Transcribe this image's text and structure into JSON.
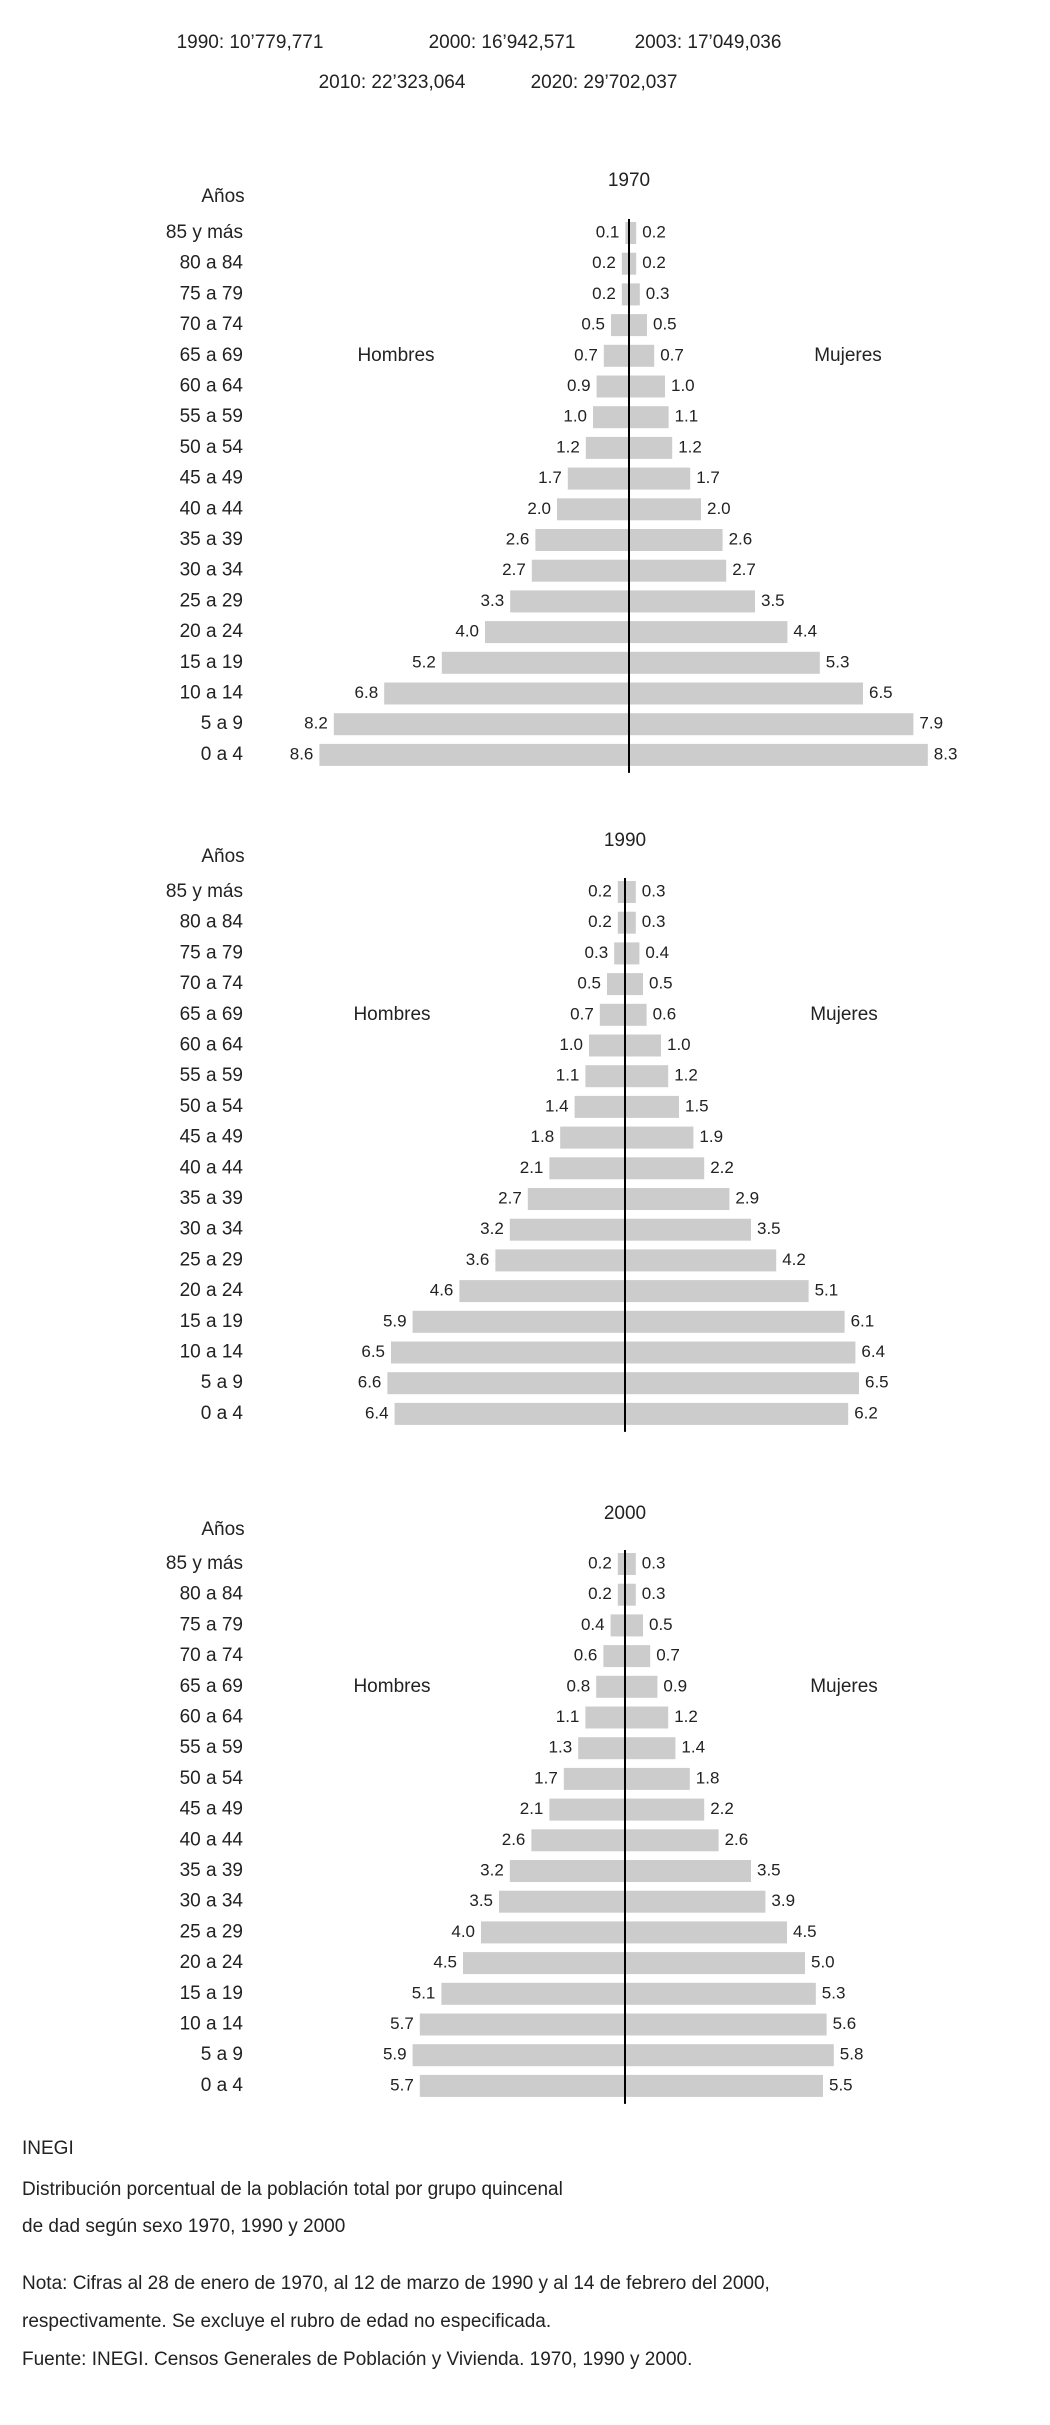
{
  "header": {
    "items": [
      "1990: 10’779,771",
      "2000: 16’942,571",
      "2003: 17’049,036",
      "2010: 22’323,064",
      "2020: 29’702,037"
    ]
  },
  "chart_data": [
    {
      "type": "pyramid",
      "title": "1970",
      "y_label": "Años",
      "categories": [
        "85 y más",
        "80 a 84",
        "75 a 79",
        "70 a 74",
        "65 a 69",
        "60 a 64",
        "55 a 59",
        "50 a 54",
        "45 a 49",
        "40 a 44",
        "35 a 39",
        "30 a 34",
        "25 a 29",
        "20 a 24",
        "15 a 19",
        "10 a 14",
        "5 a 9",
        "0 a 4"
      ],
      "series": [
        {
          "name": "Hombres",
          "color": "#cccccc",
          "values": [
            0.1,
            0.2,
            0.2,
            0.5,
            0.7,
            0.9,
            1.0,
            1.2,
            1.7,
            2.0,
            2.6,
            2.7,
            3.3,
            4.0,
            5.2,
            6.8,
            8.2,
            8.6
          ],
          "value_labels": [
            "0.1",
            "0.2",
            "0.2",
            "0.5",
            "0.7",
            "0.9",
            "1.0",
            "1.2",
            "1.7",
            "2.0",
            "2.6",
            "2.7",
            "3.3",
            "4.0",
            "5.2",
            "6.8",
            "8.2",
            "8.6"
          ]
        },
        {
          "name": "Mujeres",
          "color": "#cccccc",
          "values": [
            0.2,
            0.2,
            0.3,
            0.5,
            0.7,
            1.0,
            1.1,
            1.2,
            1.7,
            2.0,
            2.6,
            2.7,
            3.5,
            4.4,
            5.3,
            6.5,
            7.9,
            8.3
          ],
          "value_labels": [
            "0.2",
            "0.2",
            "0.3",
            "0.5",
            "0.7",
            "1.0",
            "1.1",
            "1.2",
            "1.7",
            "2.0",
            "2.6",
            "2.7",
            "3.5",
            "4.4",
            "5.3",
            "6.5",
            "7.9",
            "8.3"
          ]
        }
      ]
    },
    {
      "type": "pyramid",
      "title": "1990",
      "y_label": "Años",
      "categories": [
        "85 y más",
        "80 a 84",
        "75 a 79",
        "70 a 74",
        "65 a 69",
        "60 a 64",
        "55 a 59",
        "50 a 54",
        "45 a 49",
        "40 a 44",
        "35 a 39",
        "30 a 34",
        "25 a 29",
        "20 a 24",
        "15 a 19",
        "10 a 14",
        "5 a 9",
        "0 a 4"
      ],
      "series": [
        {
          "name": "Hombres",
          "color": "#cccccc",
          "values": [
            0.2,
            0.2,
            0.3,
            0.5,
            0.7,
            1.0,
            1.1,
            1.4,
            1.8,
            2.1,
            2.7,
            3.2,
            3.6,
            4.6,
            5.9,
            6.5,
            6.6,
            6.4
          ],
          "value_labels": [
            "0.2",
            "0.2",
            "0.3",
            "0.5",
            "0.7",
            "1.0",
            "1.1",
            "1.4",
            "1.8",
            "2.1",
            "2.7",
            "3.2",
            "3.6",
            "4.6",
            "5.9",
            "6.5",
            "6.6",
            "6.4"
          ]
        },
        {
          "name": "Mujeres",
          "color": "#cccccc",
          "values": [
            0.3,
            0.3,
            0.4,
            0.5,
            0.6,
            1.0,
            1.2,
            1.5,
            1.9,
            2.2,
            2.9,
            3.5,
            4.2,
            5.1,
            6.1,
            6.4,
            6.5,
            6.2
          ],
          "value_labels": [
            "0.3",
            "0.3",
            "0.4",
            "0.5",
            "0.6",
            "1.0",
            "1.2",
            "1.5",
            "1.9",
            "2.2",
            "2.9",
            "3.5",
            "4.2",
            "5.1",
            "6.1",
            "6.4",
            "6.5",
            "6.2"
          ]
        }
      ]
    },
    {
      "type": "pyramid",
      "title": "2000",
      "y_label": "Años",
      "categories": [
        "85 y más",
        "80 a 84",
        "75 a 79",
        "70 a 74",
        "65 a 69",
        "60 a 64",
        "55 a 59",
        "50 a 54",
        "45 a 49",
        "40 a 44",
        "35 a 39",
        "30 a 34",
        "25 a 29",
        "20 a 24",
        "15 a 19",
        "10 a 14",
        "5 a 9",
        "0 a 4"
      ],
      "series": [
        {
          "name": "Hombres",
          "color": "#cccccc",
          "values": [
            0.2,
            0.2,
            0.4,
            0.6,
            0.8,
            1.1,
            1.3,
            1.7,
            2.1,
            2.6,
            3.2,
            3.5,
            4.0,
            4.5,
            5.1,
            5.7,
            5.9,
            5.7
          ],
          "value_labels": [
            "0.2",
            "0.2",
            "0.4",
            "0.6",
            "0.8",
            "1.1",
            "1.3",
            "1.7",
            "2.1",
            "2.6",
            "3.2",
            "3.5",
            "4.0",
            "4.5",
            "5.1",
            "5.7",
            "5.9",
            "5.7"
          ]
        },
        {
          "name": "Mujeres",
          "color": "#cccccc",
          "values": [
            0.3,
            0.3,
            0.5,
            0.7,
            0.9,
            1.2,
            1.4,
            1.8,
            2.2,
            2.6,
            3.5,
            3.9,
            4.5,
            5.0,
            5.3,
            5.6,
            5.8,
            5.5
          ],
          "value_labels": [
            "0.3",
            "0.3",
            "0.5",
            "0.7",
            "0.9",
            "1.2",
            "1.4",
            "1.8",
            "2.2",
            "2.6",
            "3.5",
            "3.9",
            "4.5",
            "5.0",
            "5.3",
            "5.6",
            "5.8",
            "5.5"
          ]
        }
      ]
    }
  ],
  "footer": {
    "source": "INEGI",
    "caption": [
      "Distribución porcentual de la población total por grupo quincenal",
      "de dad según sexo 1970, 1990 y 2000"
    ],
    "notes": [
      "Nota: Cifras al 28 de enero de 1970, al 12 de marzo de 1990 y al 14 de febrero del 2000,",
      "respectivamente. Se excluye el rubro de edad no especificada.",
      "Fuente: INEGI. Censos Generales de Población y Vivienda. 1970, 1990 y 2000."
    ]
  }
}
